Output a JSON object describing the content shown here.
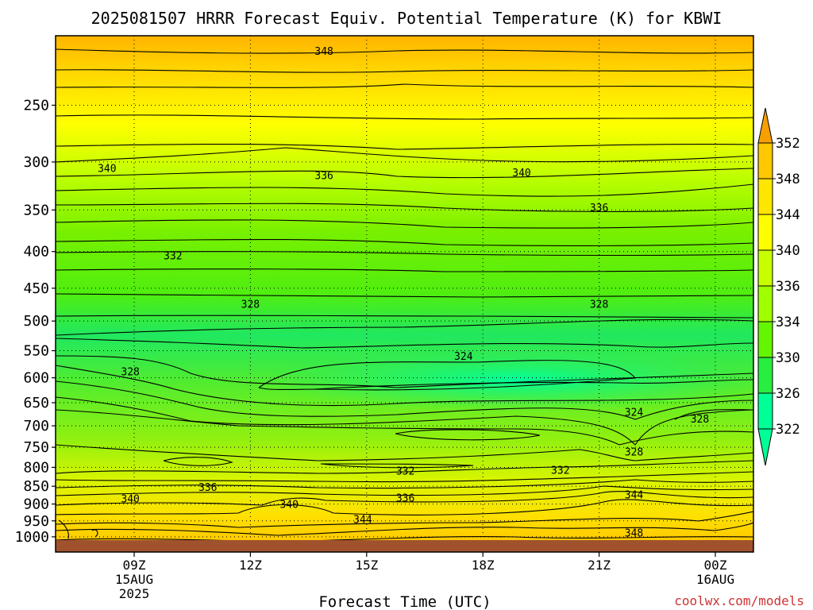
{
  "chart_data": {
    "type": "heatmap",
    "title": "2025081507 HRRR Forecast Equiv. Potential Temperature (K) for KBWI",
    "xlabel": "Forecast Time (UTC)",
    "ylabel": "",
    "y_scale": "log-pressure (inverted)",
    "ylim": [
      1050,
      200
    ],
    "y_ticks": [
      250,
      300,
      350,
      400,
      450,
      500,
      550,
      600,
      650,
      700,
      750,
      800,
      850,
      900,
      950,
      1000
    ],
    "x_ticks": [
      {
        "line1": "09Z",
        "line2": "15AUG",
        "line3": "2025"
      },
      {
        "line1": "12Z",
        "line2": "",
        "line3": ""
      },
      {
        "line1": "15Z",
        "line2": "",
        "line3": ""
      },
      {
        "line1": "18Z",
        "line2": "",
        "line3": ""
      },
      {
        "line1": "21Z",
        "line2": "",
        "line3": ""
      },
      {
        "line1": "00Z",
        "line2": "16AUG",
        "line3": ""
      }
    ],
    "grid": "dotted",
    "colorbar": {
      "placement": "right",
      "labels": [
        352,
        348,
        344,
        340,
        336,
        334,
        330,
        326,
        322
      ],
      "colors": [
        "#f5a000",
        "#ffc800",
        "#ffe600",
        "#ffff00",
        "#c8ff00",
        "#a0ff00",
        "#64f500",
        "#28ee40",
        "#00ff96"
      ]
    },
    "ground_color": "#a0522d",
    "contour_labels": [
      {
        "value": "348",
        "time": "13.9Z",
        "pressure": 210
      },
      {
        "value": "340",
        "time": "08.3Z",
        "pressure": 306
      },
      {
        "value": "336",
        "time": "13.9Z",
        "pressure": 313
      },
      {
        "value": "340",
        "time": "19.0Z",
        "pressure": 310
      },
      {
        "value": "336",
        "time": "21.0Z",
        "pressure": 347
      },
      {
        "value": "332",
        "time": "10.0Z",
        "pressure": 405
      },
      {
        "value": "328",
        "time": "12.0Z",
        "pressure": 473
      },
      {
        "value": "328",
        "time": "21.0Z",
        "pressure": 473
      },
      {
        "value": "324",
        "time": "17.5Z",
        "pressure": 559
      },
      {
        "value": "328",
        "time": "08.9Z",
        "pressure": 588
      },
      {
        "value": "324",
        "time": "21.9Z",
        "pressure": 669
      },
      {
        "value": "328",
        "time": "23.6Z",
        "pressure": 684
      },
      {
        "value": "328",
        "time": "21.9Z",
        "pressure": 760
      },
      {
        "value": "332",
        "time": "16.0Z",
        "pressure": 808
      },
      {
        "value": "332",
        "time": "20.0Z",
        "pressure": 806
      },
      {
        "value": "336",
        "time": "10.9Z",
        "pressure": 852
      },
      {
        "value": "336",
        "time": "16.0Z",
        "pressure": 882
      },
      {
        "value": "340",
        "time": "08.9Z",
        "pressure": 884
      },
      {
        "value": "340",
        "time": "13.0Z",
        "pressure": 900
      },
      {
        "value": "344",
        "time": "14.9Z",
        "pressure": 945
      },
      {
        "value": "344",
        "time": "21.9Z",
        "pressure": 873
      },
      {
        "value": "348",
        "time": "21.9Z",
        "pressure": 986
      }
    ]
  },
  "watermark": "coolwx.com/models"
}
